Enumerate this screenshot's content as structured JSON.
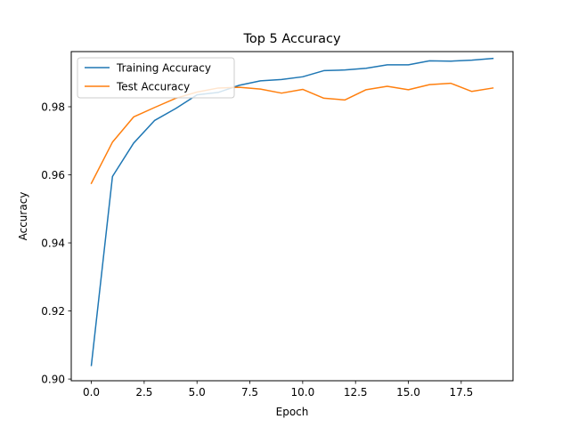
{
  "chart_data": {
    "type": "line",
    "title": "Top 5 Accuracy",
    "xlabel": "Epoch",
    "ylabel": "Accuracy",
    "xlim": [
      -0.95,
      19.95
    ],
    "ylim": [
      0.8995,
      0.9962
    ],
    "x_ticks": [
      0.0,
      2.5,
      5.0,
      7.5,
      10.0,
      12.5,
      15.0,
      17.5
    ],
    "x_tick_labels": [
      "0.0",
      "2.5",
      "5.0",
      "7.5",
      "10.0",
      "12.5",
      "15.0",
      "17.5"
    ],
    "y_ticks": [
      0.9,
      0.92,
      0.94,
      0.96,
      0.98
    ],
    "y_tick_labels": [
      "0.90",
      "0.92",
      "0.94",
      "0.96",
      "0.98"
    ],
    "legend_position": "top-left",
    "x": [
      0,
      1,
      2,
      3,
      4,
      5,
      6,
      7,
      8,
      9,
      10,
      11,
      12,
      13,
      14,
      15,
      16,
      17,
      18,
      19
    ],
    "series": [
      {
        "name": "Training Accuracy",
        "color": "#1f77b4",
        "values": [
          0.904,
          0.9595,
          0.9693,
          0.976,
          0.9795,
          0.9835,
          0.9842,
          0.9863,
          0.9876,
          0.988,
          0.9888,
          0.9906,
          0.9908,
          0.9913,
          0.9923,
          0.9923,
          0.9935,
          0.9934,
          0.9937,
          0.9942
        ]
      },
      {
        "name": "Test Accuracy",
        "color": "#ff7f0e",
        "values": [
          0.9575,
          0.9696,
          0.977,
          0.9798,
          0.9825,
          0.9843,
          0.9855,
          0.9857,
          0.9852,
          0.984,
          0.9851,
          0.9825,
          0.982,
          0.985,
          0.986,
          0.985,
          0.9865,
          0.9869,
          0.9845,
          0.9855
        ]
      }
    ]
  }
}
